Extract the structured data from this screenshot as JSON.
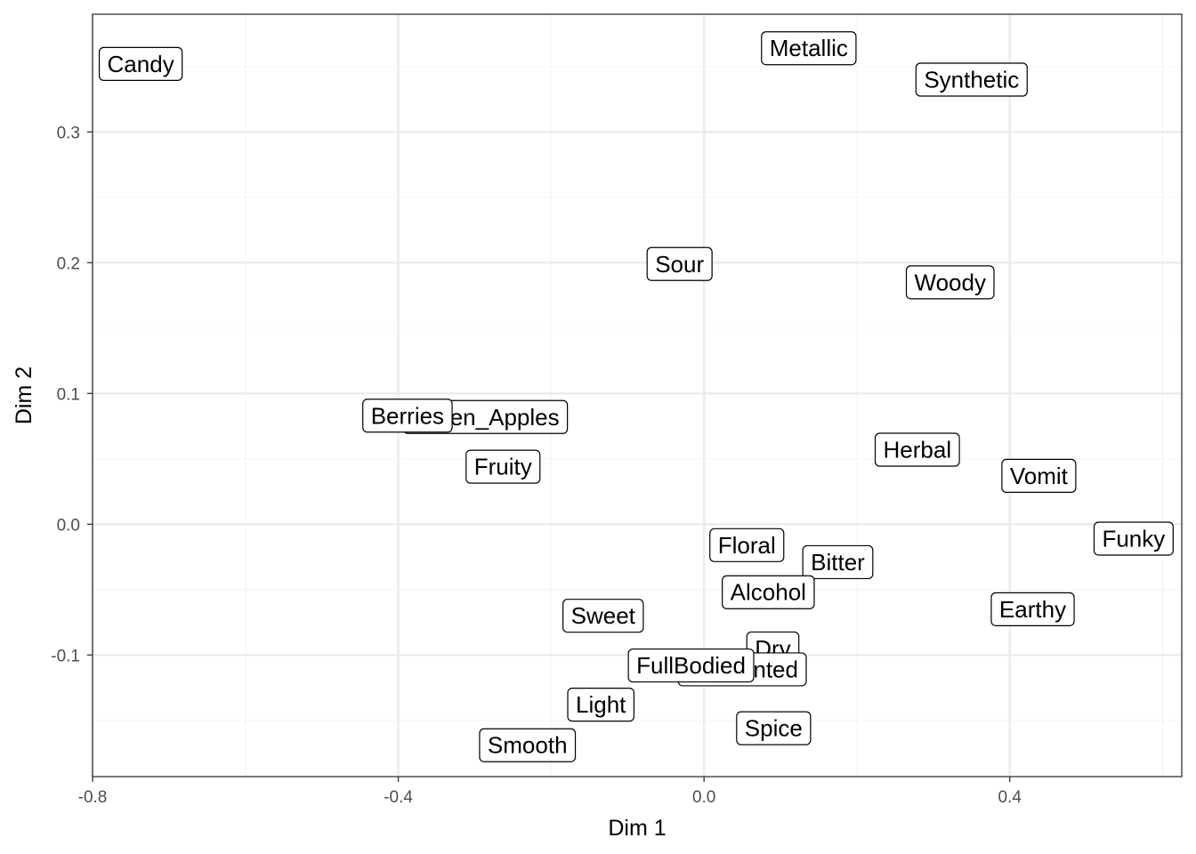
{
  "chart_data": {
    "type": "scatter",
    "title": "",
    "xlabel": "Dim 1",
    "ylabel": "Dim 2",
    "xlim": [
      -0.8,
      0.625
    ],
    "ylim": [
      -0.193,
      0.39
    ],
    "x_ticks": [
      "-0.8",
      "-0.4",
      "0.0",
      "0.4"
    ],
    "y_ticks": [
      "-0.1",
      "0.0",
      "0.1",
      "0.2",
      "0.3"
    ],
    "grid": true,
    "legend": "none",
    "points": [
      {
        "label": "Candy",
        "x": -0.737,
        "y": 0.352
      },
      {
        "label": "Metallic",
        "x": 0.137,
        "y": 0.364
      },
      {
        "label": "Synthetic",
        "x": 0.35,
        "y": 0.34
      },
      {
        "label": "Sour",
        "x": -0.032,
        "y": 0.199
      },
      {
        "label": "Woody",
        "x": 0.322,
        "y": 0.185
      },
      {
        "label": "Green_Apples",
        "x": -0.286,
        "y": 0.082
      },
      {
        "label": "Berries",
        "x": -0.388,
        "y": 0.083
      },
      {
        "label": "Fruity",
        "x": -0.263,
        "y": 0.044
      },
      {
        "label": "Herbal",
        "x": 0.279,
        "y": 0.057
      },
      {
        "label": "Vomit",
        "x": 0.438,
        "y": 0.037
      },
      {
        "label": "Funky",
        "x": 0.562,
        "y": -0.011
      },
      {
        "label": "Floral",
        "x": 0.056,
        "y": -0.016
      },
      {
        "label": "Bitter",
        "x": 0.175,
        "y": -0.029
      },
      {
        "label": "Alcohol",
        "x": 0.084,
        "y": -0.052
      },
      {
        "label": "Earthy",
        "x": 0.43,
        "y": -0.065
      },
      {
        "label": "Sweet",
        "x": -0.132,
        "y": -0.07
      },
      {
        "label": "Dry",
        "x": 0.09,
        "y": -0.095
      },
      {
        "label": "Fermented",
        "x": 0.05,
        "y": -0.111
      },
      {
        "label": "FullBodied",
        "x": -0.017,
        "y": -0.108
      },
      {
        "label": "Light",
        "x": -0.135,
        "y": -0.138
      },
      {
        "label": "Spice",
        "x": 0.091,
        "y": -0.156
      },
      {
        "label": "Smooth",
        "x": -0.231,
        "y": -0.169
      }
    ]
  },
  "colors": {
    "panel_border": "#333333",
    "grid_major": "#ebebeb",
    "grid_minor": "#f5f5f5",
    "label_fill": "#ffffff",
    "label_border": "#000000",
    "tick_text": "#4d4d4d"
  }
}
